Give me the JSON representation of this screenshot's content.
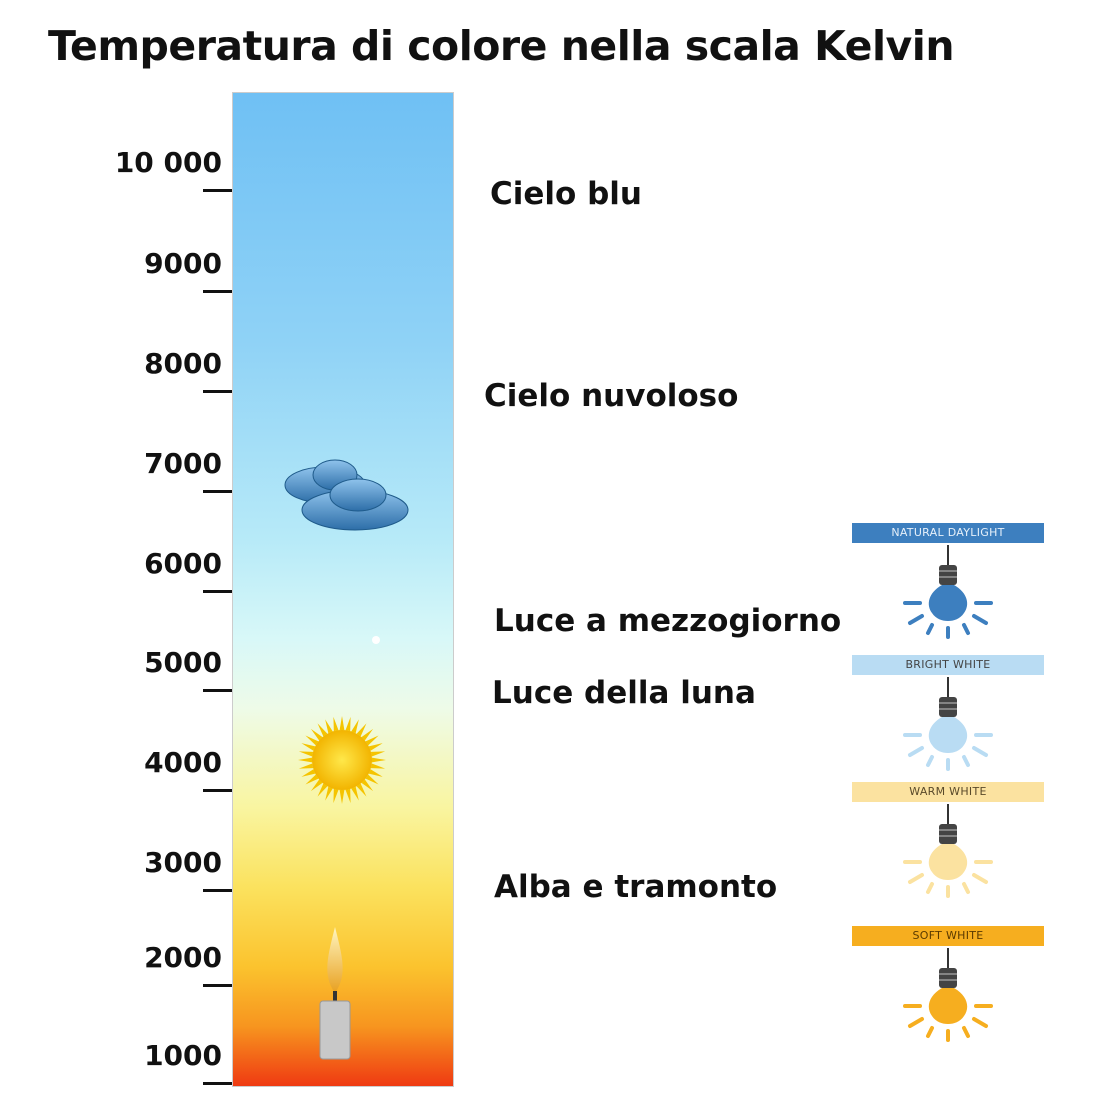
{
  "title": "Temperatura di colore nella scala Kelvin",
  "scale": {
    "unit": "K",
    "ticks": [
      "10 000",
      "9000",
      "8000",
      "7000",
      "6000",
      "5000",
      "4000",
      "3000",
      "2000",
      "1000"
    ]
  },
  "descriptions": [
    {
      "label": "Cielo blu"
    },
    {
      "label": "Cielo nuvoloso"
    },
    {
      "label": "Luce a mezzogiorno"
    },
    {
      "label": "Luce della luna"
    },
    {
      "label": "Alba e tramonto"
    }
  ],
  "icons": [
    "cloud-icon",
    "moon-icon",
    "sun-icon",
    "candle-icon"
  ],
  "bulbs": [
    {
      "label": "NATURAL DAYLIGHT",
      "color": "#3d7fbf",
      "header_bg": "#3d7fbf",
      "header_fg": "#e6f0fa"
    },
    {
      "label": "BRIGHT WHITE",
      "color": "#b9dcf3",
      "header_bg": "#b9dcf3",
      "header_fg": "#444"
    },
    {
      "label": "WARM WHITE",
      "color": "#fbe2a0",
      "header_bg": "#fbe2a0",
      "header_fg": "#5a4a2a"
    },
    {
      "label": "SOFT WHITE",
      "color": "#f6ae1f",
      "header_bg": "#f6ae1f",
      "header_fg": "#5a3a00"
    }
  ]
}
